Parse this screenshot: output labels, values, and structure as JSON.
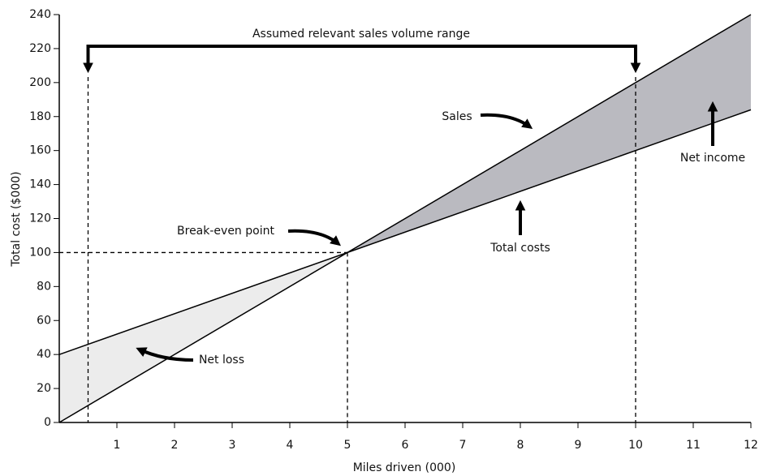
{
  "chart_data": {
    "type": "line",
    "x": [
      0,
      12
    ],
    "series": [
      {
        "name": "Sales",
        "color": "#000000",
        "values": [
          0,
          240
        ]
      },
      {
        "name": "Total costs",
        "color": "#000000",
        "values": [
          40,
          184
        ]
      }
    ],
    "xlim": [
      0,
      12
    ],
    "xticks": [
      1,
      2,
      3,
      4,
      5,
      6,
      7,
      8,
      9,
      10,
      11,
      12
    ],
    "ylim": [
      0,
      240
    ],
    "yticks": [
      0,
      20,
      40,
      60,
      80,
      100,
      120,
      140,
      160,
      180,
      200,
      220,
      240
    ],
    "xlabel": "Miles driven (000)",
    "ylabel": "Total cost ($000)",
    "annotations": {
      "range": {
        "text": "Assumed relevant sales volume range",
        "x": [
          0.5,
          10
        ]
      },
      "break_even": {
        "text": "Break-even point",
        "x": 5,
        "y": 100
      },
      "net_loss": {
        "text": "Net loss",
        "color": "#ececec"
      },
      "net_income": {
        "text": "Net income",
        "color": "#babac0"
      }
    }
  }
}
